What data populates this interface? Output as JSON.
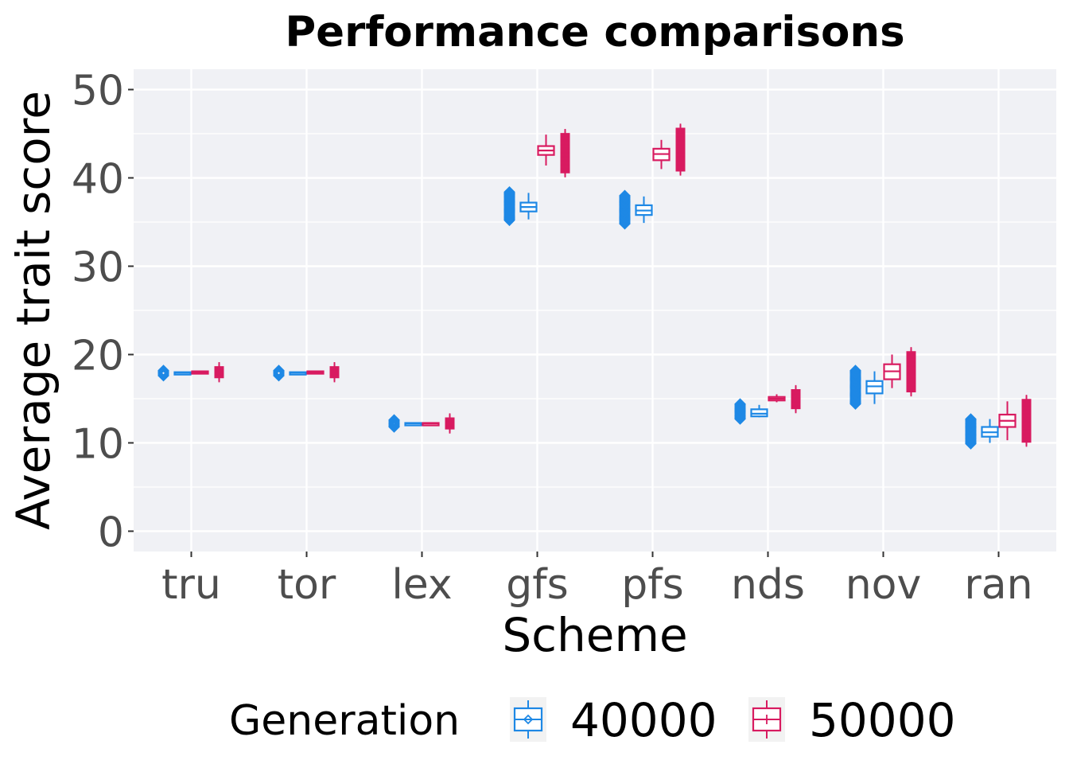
{
  "chart_data": {
    "type": "box",
    "title": "Performance comparisons",
    "xlabel": "Scheme",
    "ylabel": "Average trait score",
    "ylim": [
      -2.3,
      52.3
    ],
    "yticks": [
      0,
      10,
      20,
      30,
      40,
      50
    ],
    "grid": true,
    "legend": {
      "title": "Generation",
      "position": "bottom"
    },
    "categories": [
      "tru",
      "tor",
      "lex",
      "gfs",
      "pfs",
      "nds",
      "nov",
      "ran"
    ],
    "series": [
      {
        "name": "40000",
        "color": "#1e88e5",
        "marker": "diamond",
        "points": [
          {
            "min": 17.6,
            "max": 18.2
          },
          {
            "min": 17.6,
            "max": 18.2
          },
          {
            "min": 11.8,
            "max": 12.6
          },
          {
            "min": 35.2,
            "max": 38.4
          },
          {
            "min": 34.8,
            "max": 38.0
          },
          {
            "min": 12.7,
            "max": 14.4
          },
          {
            "min": 14.4,
            "max": 18.2
          },
          {
            "min": 9.9,
            "max": 12.7
          }
        ],
        "boxes": [
          {
            "min": 17.85,
            "q1": 17.9,
            "median": 17.95,
            "q3": 18.0,
            "max": 18.05
          },
          {
            "min": 17.85,
            "q1": 17.9,
            "median": 17.95,
            "q3": 18.0,
            "max": 18.05
          },
          {
            "min": 12.1,
            "q1": 12.15,
            "median": 12.2,
            "q3": 12.25,
            "max": 12.3
          },
          {
            "min": 35.3,
            "q1": 36.2,
            "median": 36.7,
            "q3": 37.2,
            "max": 38.3
          },
          {
            "min": 34.9,
            "q1": 35.8,
            "median": 36.3,
            "q3": 36.9,
            "max": 37.9
          },
          {
            "min": 12.9,
            "q1": 13.0,
            "median": 13.3,
            "q3": 13.8,
            "max": 14.3
          },
          {
            "min": 14.4,
            "q1": 15.6,
            "median": 16.4,
            "q3": 17.0,
            "max": 18.1
          },
          {
            "min": 10.0,
            "q1": 10.7,
            "median": 11.2,
            "q3": 11.8,
            "max": 12.7
          }
        ]
      },
      {
        "name": "50000",
        "color": "#d81b60",
        "marker": "plus",
        "points": [
          {
            "min": 17.4,
            "max": 18.6
          },
          {
            "min": 17.4,
            "max": 18.6
          },
          {
            "min": 11.6,
            "max": 12.8
          },
          {
            "min": 40.6,
            "max": 45.0
          },
          {
            "min": 40.8,
            "max": 45.6
          },
          {
            "min": 13.9,
            "max": 16.0
          },
          {
            "min": 15.8,
            "max": 20.3
          },
          {
            "min": 10.1,
            "max": 14.9
          }
        ],
        "boxes": [
          {
            "min": 17.9,
            "q1": 17.95,
            "median": 18.0,
            "q3": 18.1,
            "max": 18.15
          },
          {
            "min": 17.9,
            "q1": 17.95,
            "median": 18.0,
            "q3": 18.1,
            "max": 18.15
          },
          {
            "min": 12.1,
            "q1": 12.15,
            "median": 12.2,
            "q3": 12.25,
            "max": 12.3
          },
          {
            "min": 41.4,
            "q1": 42.6,
            "median": 43.1,
            "q3": 43.6,
            "max": 44.9
          },
          {
            "min": 41.0,
            "q1": 42.0,
            "median": 42.7,
            "q3": 43.3,
            "max": 44.3
          },
          {
            "min": 14.6,
            "q1": 14.8,
            "median": 15.0,
            "q3": 15.2,
            "max": 15.5
          },
          {
            "min": 16.2,
            "q1": 17.2,
            "median": 18.1,
            "q3": 18.9,
            "max": 20.0
          },
          {
            "min": 10.3,
            "q1": 11.8,
            "median": 12.5,
            "q3": 13.2,
            "max": 14.7
          }
        ]
      }
    ]
  }
}
